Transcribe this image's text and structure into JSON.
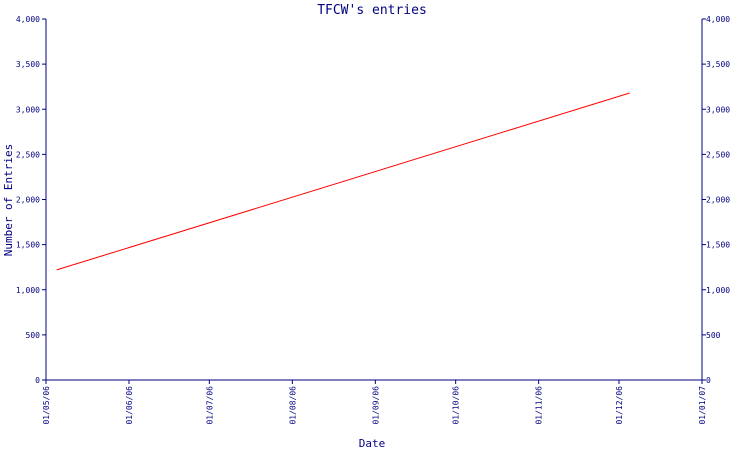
{
  "chart_data": {
    "type": "line",
    "title": "TFCW's entries",
    "xlabel": "Date",
    "ylabel": "Number of Entries",
    "x_tick_labels": [
      "01/05/06",
      "01/06/06",
      "01/07/06",
      "01/08/06",
      "01/09/06",
      "01/10/06",
      "01/11/06",
      "01/12/06",
      "01/01/07"
    ],
    "y_tick_labels": [
      "0",
      "500",
      "1,000",
      "1,500",
      "2,000",
      "2,500",
      "3,000",
      "3,500",
      "4,000"
    ],
    "y_right_tick_labels": [
      "0",
      "500",
      "1,000",
      "1,500",
      "2,000",
      "2,500",
      "3,000",
      "3,500",
      "4,000"
    ],
    "ylim": [
      0,
      4000
    ],
    "xlim": [
      "2006-05-01",
      "2007-01-01"
    ],
    "grid": false,
    "series": [
      {
        "color": "#ff0000",
        "points": [
          {
            "x": "2006-05-05",
            "y": 1220
          },
          {
            "x": "2006-12-05",
            "y": 3180
          }
        ]
      }
    ]
  }
}
